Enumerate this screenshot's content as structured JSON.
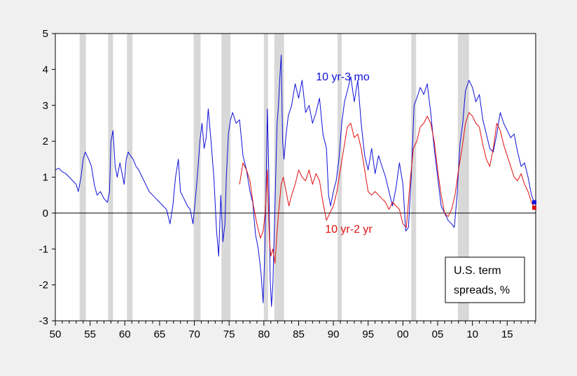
{
  "chart_data": {
    "type": "line",
    "title": "",
    "xlabel": "",
    "ylabel": "",
    "xlim": [
      1950,
      2019.1
    ],
    "ylim": [
      -3,
      5
    ],
    "grid": false,
    "legend_box_lines": [
      "U.S. term",
      "spreads, %"
    ],
    "x_ticks": [
      {
        "v": 1950,
        "label": "50"
      },
      {
        "v": 1955,
        "label": "55"
      },
      {
        "v": 1960,
        "label": "60"
      },
      {
        "v": 1965,
        "label": "65"
      },
      {
        "v": 1970,
        "label": "70"
      },
      {
        "v": 1975,
        "label": "75"
      },
      {
        "v": 1980,
        "label": "80"
      },
      {
        "v": 1985,
        "label": "85"
      },
      {
        "v": 1990,
        "label": "90"
      },
      {
        "v": 1995,
        "label": "95"
      },
      {
        "v": 2000,
        "label": "00"
      },
      {
        "v": 2005,
        "label": "05"
      },
      {
        "v": 2010,
        "label": "10"
      },
      {
        "v": 2015,
        "label": "15"
      }
    ],
    "y_ticks": [
      {
        "v": -3,
        "label": "-3"
      },
      {
        "v": -2,
        "label": "-2"
      },
      {
        "v": -1,
        "label": "-1"
      },
      {
        "v": 0,
        "label": "0"
      },
      {
        "v": 1,
        "label": "1"
      },
      {
        "v": 2,
        "label": "2"
      },
      {
        "v": 3,
        "label": "3"
      },
      {
        "v": 4,
        "label": "4"
      },
      {
        "v": 5,
        "label": "5"
      }
    ],
    "recessions": [
      [
        1953.5,
        1954.4
      ],
      [
        1957.6,
        1958.3
      ],
      [
        1960.3,
        1961.1
      ],
      [
        1969.9,
        1970.9
      ],
      [
        1973.9,
        1975.2
      ],
      [
        1980.0,
        1980.6
      ],
      [
        1981.5,
        1982.9
      ],
      [
        1990.6,
        1991.2
      ],
      [
        2001.2,
        2001.9
      ],
      [
        2007.9,
        2009.5
      ]
    ],
    "colors": {
      "series_3mo": "#1010d8",
      "series_2yr": "#dd1010",
      "recession": "#d8d8d8",
      "plot_bg": "#ffffff",
      "axis": "#000000"
    },
    "series": [
      {
        "key": "s3mo",
        "name": "10 yr-3 mo",
        "label_at": [
          1987.5,
          3.7
        ],
        "x": [
          1950.0,
          1950.5,
          1951.0,
          1951.5,
          1952.0,
          1952.5,
          1953.0,
          1953.3,
          1953.7,
          1954.0,
          1954.3,
          1954.8,
          1955.2,
          1955.6,
          1956.0,
          1956.5,
          1957.0,
          1957.5,
          1957.8,
          1958.0,
          1958.3,
          1958.6,
          1958.9,
          1959.3,
          1959.6,
          1959.9,
          1960.2,
          1960.5,
          1960.8,
          1961.2,
          1961.6,
          1962.0,
          1962.5,
          1963.0,
          1963.5,
          1964.0,
          1964.5,
          1965.0,
          1965.5,
          1966.0,
          1966.5,
          1966.9,
          1967.3,
          1967.7,
          1968.0,
          1968.5,
          1969.0,
          1969.4,
          1969.8,
          1970.2,
          1970.5,
          1970.8,
          1971.1,
          1971.4,
          1971.7,
          1972.0,
          1972.4,
          1972.8,
          1973.2,
          1973.5,
          1973.8,
          1974.1,
          1974.4,
          1974.6,
          1974.9,
          1975.2,
          1975.5,
          1976.0,
          1976.5,
          1977.0,
          1977.5,
          1978.0,
          1978.4,
          1978.8,
          1979.2,
          1979.6,
          1979.9,
          1980.1,
          1980.3,
          1980.5,
          1980.7,
          1980.9,
          1981.1,
          1981.3,
          1981.5,
          1981.7,
          1981.9,
          1982.1,
          1982.3,
          1982.5,
          1982.7,
          1982.9,
          1983.2,
          1983.5,
          1984.0,
          1984.5,
          1985.0,
          1985.5,
          1986.0,
          1986.5,
          1987.0,
          1987.5,
          1988.0,
          1988.5,
          1989.0,
          1989.3,
          1989.6,
          1990.0,
          1990.4,
          1990.8,
          1991.2,
          1991.6,
          1992.0,
          1992.5,
          1993.0,
          1993.5,
          1994.0,
          1994.5,
          1995.0,
          1995.5,
          1996.0,
          1996.5,
          1997.0,
          1997.5,
          1998.0,
          1998.5,
          1999.0,
          1999.5,
          2000.0,
          2000.4,
          2000.8,
          2001.2,
          2001.6,
          2002.0,
          2002.5,
          2003.0,
          2003.5,
          2004.0,
          2004.5,
          2005.0,
          2005.5,
          2006.0,
          2006.5,
          2007.0,
          2007.4,
          2007.8,
          2008.2,
          2008.6,
          2009.0,
          2009.5,
          2010.0,
          2010.5,
          2011.0,
          2011.5,
          2012.0,
          2012.5,
          2013.0,
          2013.5,
          2014.0,
          2014.5,
          2015.0,
          2015.5,
          2016.0,
          2016.5,
          2017.0,
          2017.5,
          2018.0,
          2018.5,
          2018.9
        ],
        "y": [
          1.2,
          1.25,
          1.15,
          1.1,
          1.0,
          0.9,
          0.8,
          0.6,
          1.0,
          1.5,
          1.7,
          1.5,
          1.3,
          0.8,
          0.5,
          0.6,
          0.4,
          0.3,
          0.6,
          2.0,
          2.3,
          1.3,
          1.0,
          1.4,
          1.1,
          0.8,
          1.5,
          1.7,
          1.6,
          1.5,
          1.3,
          1.2,
          1.0,
          0.8,
          0.6,
          0.5,
          0.4,
          0.3,
          0.2,
          0.1,
          -0.3,
          0.2,
          1.0,
          1.5,
          0.6,
          0.4,
          0.2,
          0.1,
          -0.3,
          0.5,
          1.2,
          2.0,
          2.5,
          1.8,
          2.1,
          2.9,
          2.0,
          1.0,
          -0.5,
          -1.2,
          0.5,
          -0.8,
          -0.3,
          1.0,
          2.2,
          2.6,
          2.8,
          2.5,
          2.6,
          1.6,
          1.2,
          0.6,
          0.3,
          -0.6,
          -1.0,
          -1.7,
          -2.5,
          -1.3,
          0.5,
          2.9,
          1.2,
          -1.8,
          -2.6,
          -2.0,
          -0.5,
          1.0,
          2.5,
          3.0,
          3.8,
          4.4,
          2.0,
          1.5,
          2.2,
          2.7,
          3.0,
          3.6,
          3.2,
          3.7,
          2.8,
          3.0,
          2.5,
          2.8,
          3.2,
          2.2,
          1.8,
          0.5,
          0.2,
          0.6,
          0.9,
          1.5,
          2.5,
          3.1,
          3.4,
          3.8,
          3.1,
          3.7,
          2.5,
          1.6,
          1.2,
          1.8,
          1.1,
          1.6,
          1.3,
          1.0,
          0.6,
          0.2,
          0.7,
          1.4,
          0.8,
          -0.5,
          -0.4,
          1.0,
          3.0,
          3.2,
          3.5,
          3.3,
          3.6,
          2.8,
          1.8,
          1.0,
          0.2,
          0.0,
          -0.2,
          -0.3,
          -0.4,
          0.5,
          1.9,
          2.5,
          3.4,
          3.7,
          3.5,
          3.1,
          3.3,
          2.6,
          2.2,
          1.8,
          1.7,
          2.2,
          2.8,
          2.5,
          2.3,
          2.1,
          2.2,
          1.7,
          1.3,
          1.4,
          1.0,
          0.5,
          0.3
        ]
      },
      {
        "key": "s2yr",
        "name": "10 yr-2 yr",
        "label_at": [
          1988.8,
          -0.55
        ],
        "x": [
          1976.5,
          1977.0,
          1977.5,
          1978.0,
          1978.5,
          1979.0,
          1979.5,
          1979.9,
          1980.2,
          1980.5,
          1980.8,
          1981.0,
          1981.3,
          1981.6,
          1981.9,
          1982.2,
          1982.5,
          1982.8,
          1983.2,
          1983.6,
          1984.0,
          1984.5,
          1985.0,
          1985.5,
          1986.0,
          1986.5,
          1987.0,
          1987.5,
          1988.0,
          1988.5,
          1989.0,
          1989.5,
          1990.0,
          1990.5,
          1991.0,
          1991.5,
          1992.0,
          1992.5,
          1993.0,
          1993.5,
          1994.0,
          1994.5,
          1995.0,
          1995.5,
          1996.0,
          1996.5,
          1997.0,
          1997.5,
          1998.0,
          1998.5,
          1999.0,
          1999.5,
          2000.0,
          2000.5,
          2001.0,
          2001.5,
          2002.0,
          2002.5,
          2003.0,
          2003.5,
          2004.0,
          2004.5,
          2005.0,
          2005.5,
          2006.0,
          2006.5,
          2007.0,
          2007.5,
          2008.0,
          2008.5,
          2009.0,
          2009.5,
          2010.0,
          2010.5,
          2011.0,
          2011.5,
          2012.0,
          2012.5,
          2013.0,
          2013.5,
          2014.0,
          2014.5,
          2015.0,
          2015.5,
          2016.0,
          2016.5,
          2017.0,
          2017.5,
          2018.0,
          2018.5,
          2018.9
        ],
        "y": [
          0.8,
          1.4,
          1.2,
          0.9,
          0.2,
          -0.3,
          -0.7,
          -0.5,
          0.0,
          1.2,
          -0.8,
          -1.2,
          -1.0,
          -1.4,
          -0.5,
          0.2,
          0.8,
          1.0,
          0.6,
          0.2,
          0.5,
          0.8,
          1.2,
          1.0,
          0.9,
          1.2,
          0.8,
          1.1,
          0.9,
          0.3,
          -0.2,
          0.0,
          0.2,
          0.6,
          1.2,
          1.8,
          2.4,
          2.5,
          2.1,
          2.2,
          1.8,
          1.2,
          0.6,
          0.5,
          0.6,
          0.5,
          0.4,
          0.3,
          0.1,
          0.3,
          0.2,
          0.1,
          -0.3,
          -0.4,
          0.8,
          1.8,
          2.0,
          2.4,
          2.5,
          2.7,
          2.5,
          2.0,
          1.2,
          0.5,
          0.0,
          -0.1,
          0.1,
          0.5,
          1.2,
          1.8,
          2.5,
          2.8,
          2.7,
          2.5,
          2.4,
          1.9,
          1.5,
          1.3,
          1.8,
          2.5,
          2.3,
          1.9,
          1.6,
          1.3,
          1.0,
          0.9,
          1.1,
          0.8,
          0.6,
          0.3,
          0.15
        ]
      }
    ]
  }
}
